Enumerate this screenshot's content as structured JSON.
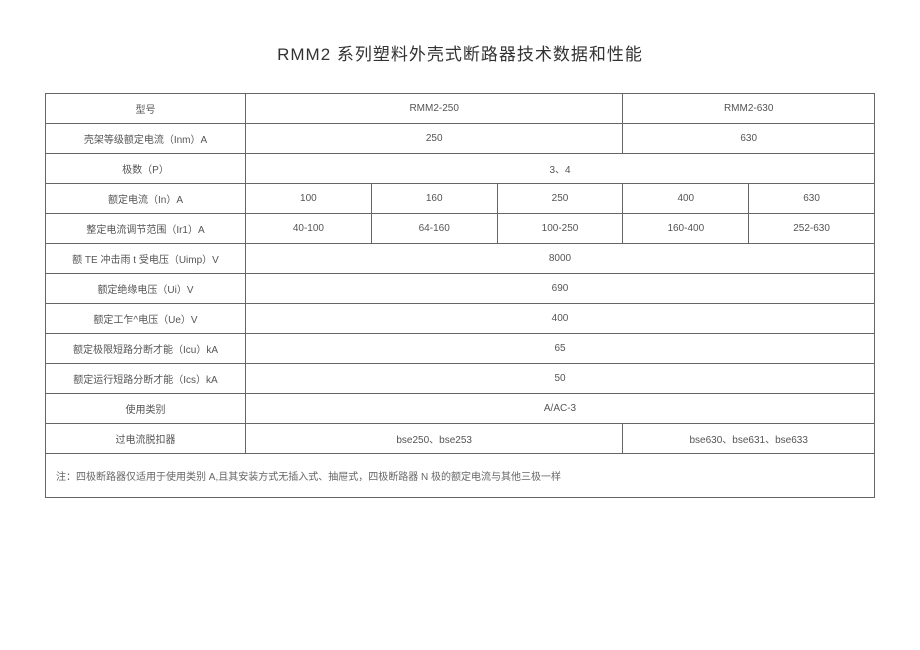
{
  "title": "RMM2 系列塑料外壳式断路器技术数据和性能",
  "table": {
    "col_widths": [
      "200px",
      "auto",
      "auto",
      "auto",
      "auto",
      "auto"
    ],
    "border_color": "#666666",
    "background_color": "#ffffff",
    "label_fontsize": 10,
    "title_fontsize": 17,
    "text_color": "#555555",
    "rows": {
      "model": {
        "label": "型号",
        "v1": "RMM2-250",
        "v2": "RMM2-630"
      },
      "frame_current": {
        "label": "壳架等级额定电流（Inm）A",
        "v1": "250",
        "v2": "630"
      },
      "poles": {
        "label": "极数（P）",
        "v": "3、4"
      },
      "rated_current": {
        "label": "额定电流（In）A",
        "c1": "100",
        "c2": "160",
        "c3": "250",
        "c4": "400",
        "c5": "630"
      },
      "ir1": {
        "label": "整定电流调节范围（Ir1）A",
        "c1": "40-100",
        "c2": "64-160",
        "c3": "100-250",
        "c4": "160-400",
        "c5": "252-630"
      },
      "uimp": {
        "label": "额 TE 冲击雨 t 受电压（Uimp）V",
        "v": "8000"
      },
      "ui": {
        "label": "额定绝缘电压（Ui）V",
        "v": "690"
      },
      "ue": {
        "label": "额定工乍^电压（Ue）V",
        "v": "400"
      },
      "icu": {
        "label": "额定极限短路分断才能（Icu）kA",
        "v": "65"
      },
      "ics": {
        "label": "额定运行短路分断才能（Ics）kA",
        "v": "50"
      },
      "category": {
        "label": "使用类别",
        "v": "A/AC-3"
      },
      "trip": {
        "label": "过电流脱扣器",
        "v1": "bse250、bse253",
        "v2": "bse630、bse631、bse633"
      },
      "note": {
        "text": "注：四极断路器仅适用于使用类别 A,且其安装方式无插入式、抽屉式，四极断路器 N 极的额定电流与其他三极一样"
      }
    }
  }
}
